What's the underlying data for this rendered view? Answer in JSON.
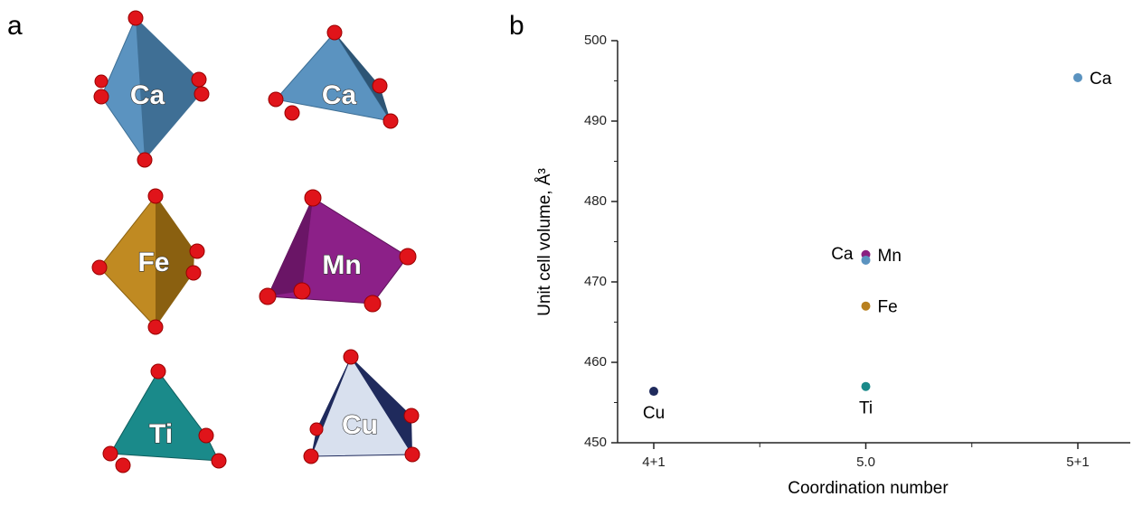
{
  "panel_labels": [
    "a",
    "b"
  ],
  "panel_a": {
    "polyhedra": [
      {
        "label": "Ca"
      },
      {
        "label": "Ca"
      },
      {
        "label": "Fe"
      },
      {
        "label": "Mn"
      },
      {
        "label": "Ti"
      },
      {
        "label": "Cu"
      }
    ]
  },
  "chart_data": {
    "type": "scatter",
    "x_label": "Coordination number",
    "y_label": "Unit cell volume, Å³",
    "categories": [
      "4+1",
      "5.0",
      "5+1"
    ],
    "points": [
      {
        "x": "4+1",
        "y": 456.4,
        "label": "Cu",
        "color": "#1f2a5c"
      },
      {
        "x": "5.0",
        "y": 457.0,
        "label": "Ti",
        "color": "#1a8a8a"
      },
      {
        "x": "5.0",
        "y": 467.0,
        "label": "Fe",
        "color": "#b8801e"
      },
      {
        "x": "5.0",
        "y": 473.4,
        "label": "Mn",
        "color": "#8a2080"
      },
      {
        "x": "5.0",
        "y": 472.7,
        "label": "Ca",
        "color": "#5b93c0"
      },
      {
        "x": "5+1",
        "y": 495.4,
        "label": "Ca",
        "color": "#5b93c0"
      }
    ],
    "ylim": [
      450,
      500
    ],
    "yticks": [
      450,
      460,
      470,
      480,
      490,
      500
    ]
  }
}
